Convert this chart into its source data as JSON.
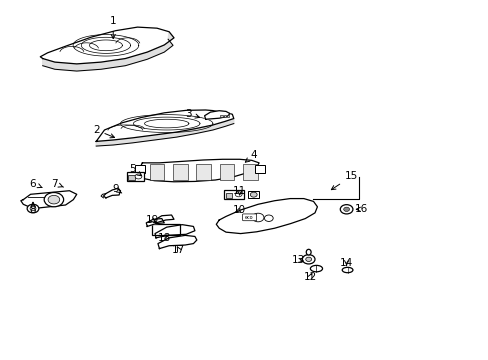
{
  "bg_color": "#ffffff",
  "line_color": "#000000",
  "text_color": "#000000",
  "fig_width": 4.89,
  "fig_height": 3.6,
  "dpi": 100,
  "labels": {
    "1": [
      0.23,
      0.945,
      0.23,
      0.885
    ],
    "2": [
      0.195,
      0.64,
      0.24,
      0.615
    ],
    "3": [
      0.385,
      0.685,
      0.415,
      0.672
    ],
    "4": [
      0.52,
      0.57,
      0.5,
      0.548
    ],
    "5": [
      0.27,
      0.53,
      0.29,
      0.51
    ],
    "6": [
      0.065,
      0.49,
      0.085,
      0.478
    ],
    "7": [
      0.11,
      0.49,
      0.128,
      0.48
    ],
    "8": [
      0.065,
      0.415,
      0.065,
      0.44
    ],
    "9": [
      0.235,
      0.475,
      0.248,
      0.463
    ],
    "10": [
      0.49,
      0.415,
      0.475,
      0.408
    ],
    "11": [
      0.49,
      0.47,
      0.49,
      0.455
    ],
    "12": [
      0.635,
      0.228,
      0.642,
      0.248
    ],
    "13": [
      0.61,
      0.275,
      0.628,
      0.272
    ],
    "14": [
      0.71,
      0.268,
      0.71,
      0.252
    ],
    "15": [
      0.72,
      0.51,
      0.672,
      0.467
    ],
    "16": [
      0.74,
      0.418,
      0.722,
      0.418
    ],
    "17": [
      0.365,
      0.305,
      0.358,
      0.322
    ],
    "18": [
      0.335,
      0.338,
      0.342,
      0.348
    ],
    "19": [
      0.31,
      0.388,
      0.322,
      0.375
    ]
  }
}
